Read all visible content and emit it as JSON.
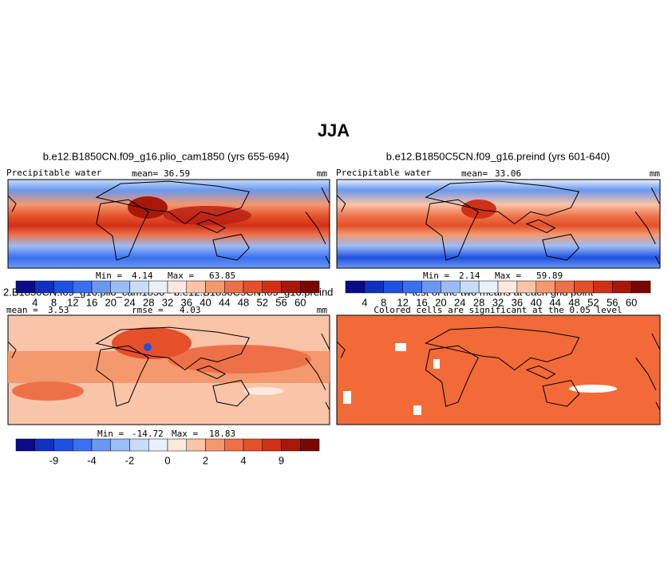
{
  "title": "JJA",
  "panels": [
    {
      "title": "b.e12.B1850CN.f09_g16.plio_cam1850 (yrs 655-694)",
      "variable": "Precipitable water",
      "stat_label": "mean=",
      "stat": 36.59,
      "units": "mm",
      "min_label": "Min =",
      "min": 4.14,
      "max_label": "Max =",
      "max": 63.85,
      "colorbar": {
        "colors": [
          "#0a0a8a",
          "#1030c0",
          "#2050e0",
          "#3a70f0",
          "#6a98f0",
          "#9cbcf4",
          "#c8dcf8",
          "#e8f0fc",
          "#fde8dc",
          "#f9c4a8",
          "#f4986e",
          "#ee7048",
          "#e4502a",
          "#d03018",
          "#a81808",
          "#7a0800"
        ],
        "labels": [
          4,
          8,
          12,
          16,
          20,
          24,
          28,
          32,
          36,
          40,
          44,
          48,
          52,
          56,
          60
        ]
      }
    },
    {
      "title": "b.e12.B1850C5CN.f09_g16.preind (yrs 601-640)",
      "variable": "Precipitable water",
      "stat_label": "mean=",
      "stat": 33.06,
      "units": "mm",
      "min_label": "Min =",
      "min": 2.14,
      "max_label": "Max =",
      "max": 59.89,
      "colorbar": {
        "colors": [
          "#0a0a8a",
          "#1030c0",
          "#2050e0",
          "#3a70f0",
          "#6a98f0",
          "#9cbcf4",
          "#c8dcf8",
          "#e8f0fc",
          "#fde8dc",
          "#f9c4a8",
          "#f4986e",
          "#ee7048",
          "#e4502a",
          "#d03018",
          "#a81808",
          "#7a0800"
        ],
        "labels": [
          4,
          8,
          12,
          16,
          20,
          24,
          28,
          32,
          36,
          40,
          44,
          48,
          52,
          56,
          60
        ]
      }
    },
    {
      "title": "2.B1850CN.f09_g16.plio_cam1850 - b.e12.B1850C5CN.f09_g16.preind",
      "stat_label": "mean =",
      "stat": 3.53,
      "rmse_label": "rmse =",
      "rmse": 4.03,
      "units": "mm",
      "min_label": "Min =",
      "min": -14.72,
      "max_label": "Max =",
      "max": 18.83,
      "colorbar": {
        "colors": [
          "#0a0a8a",
          "#1030c0",
          "#2050e0",
          "#3a70f0",
          "#6a98f0",
          "#9cbcf4",
          "#c8dcf8",
          "#e8f0fc",
          "#fde8dc",
          "#f9c4a8",
          "#f4986e",
          "#ee7048",
          "#e4502a",
          "#d03018",
          "#a81808",
          "#7a0800"
        ],
        "labels": [
          -9,
          -4,
          -2,
          0,
          2,
          4,
          9
        ]
      }
    },
    {
      "title": "T-test of the two means at each grid point",
      "subtitle": "Colored cells are significant at the 0.05 level"
    }
  ]
}
